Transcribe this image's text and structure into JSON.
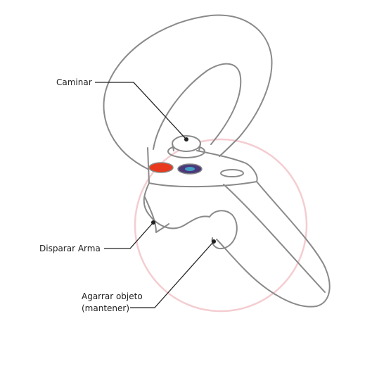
{
  "labels": {
    "walk": "Caminar",
    "shoot": "Disparar Arma",
    "grab_line1": "Agarrar objeto",
    "grab_line2": "(mantener)"
  },
  "colors": {
    "outline": "#8a8a8a",
    "ring": "#f2c6cb",
    "button_left": "#e8391e",
    "button_right": "#4a3a7a",
    "leader": "#222222"
  },
  "icons": {
    "controller": "vr-controller-icon",
    "joystick": "thumbstick-icon"
  }
}
